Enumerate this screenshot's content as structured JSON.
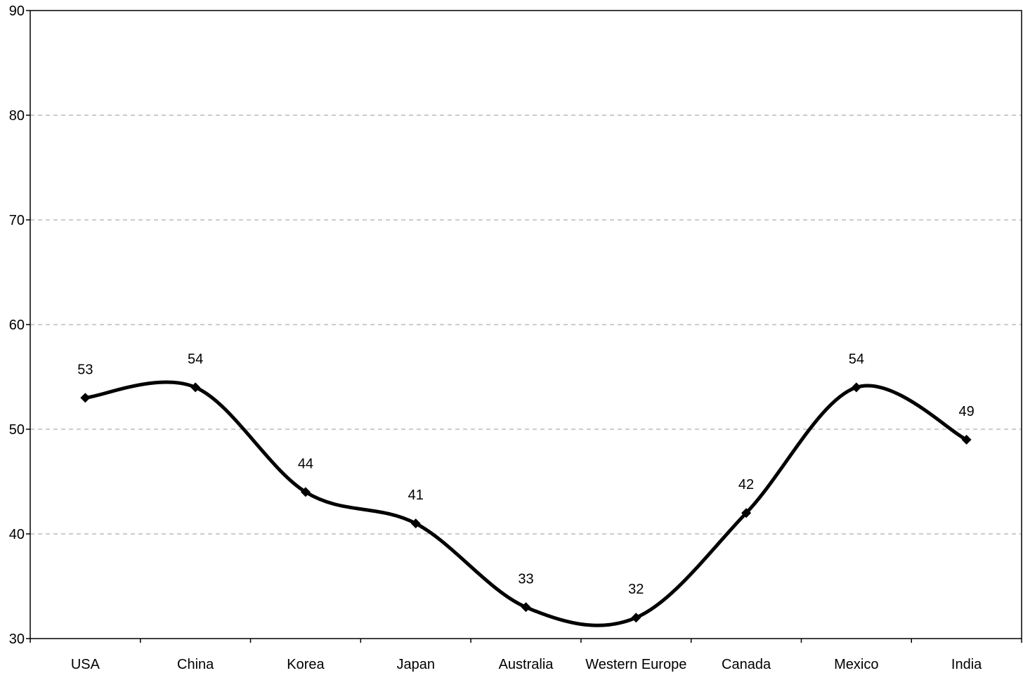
{
  "chart_data": {
    "type": "line",
    "categories": [
      "USA",
      "China",
      "Korea",
      "Japan",
      "Australia",
      "Western Europe",
      "Canada",
      "Mexico",
      "India"
    ],
    "series": [
      {
        "values": [
          53,
          54,
          44,
          41,
          33,
          32,
          42,
          54,
          49
        ],
        "data_labels": [
          "53",
          "54",
          "44",
          "41",
          "33",
          "32",
          "42",
          "54",
          "49"
        ]
      }
    ],
    "ylim": [
      30,
      90
    ],
    "yticks": [
      30,
      40,
      50,
      60,
      70,
      80,
      90
    ],
    "ytick_labels": [
      "30",
      "40",
      "50",
      "60",
      "70",
      "80",
      "90"
    ],
    "grid": true,
    "smooth": true,
    "marker": "diamond",
    "line_color": "#000000",
    "grid_color": "#9a9a9a",
    "legend": "none"
  }
}
